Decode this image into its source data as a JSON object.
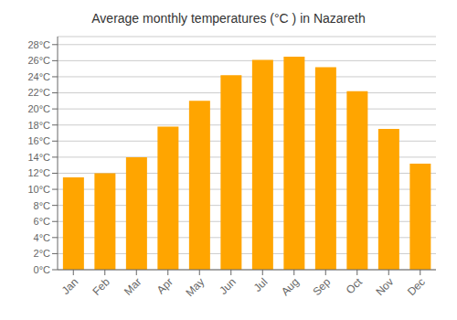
{
  "chart_data": {
    "type": "bar",
    "title": "Average monthly temperatures (°C ) in Nazareth",
    "categories": [
      "Jan",
      "Feb",
      "Mar",
      "Apr",
      "May",
      "Jun",
      "Jul",
      "Aug",
      "Sep",
      "Oct",
      "Nov",
      "Dec"
    ],
    "values": [
      11.5,
      12.0,
      14.0,
      17.8,
      21.0,
      24.2,
      26.1,
      26.5,
      25.2,
      22.2,
      17.5,
      13.2
    ],
    "color": "#FFA500",
    "ylim": [
      0,
      29
    ],
    "yticks": [
      {
        "value": 0,
        "label": "0°C"
      },
      {
        "value": 2,
        "label": "2°C"
      },
      {
        "value": 4,
        "label": "4°C"
      },
      {
        "value": 6,
        "label": "6°C"
      },
      {
        "value": 8,
        "label": "8°C"
      },
      {
        "value": 10,
        "label": "10°C"
      },
      {
        "value": 12,
        "label": "12°C"
      },
      {
        "value": 14,
        "label": "14°C"
      },
      {
        "value": 16,
        "label": "16°C"
      },
      {
        "value": 18,
        "label": "18°C"
      },
      {
        "value": 20,
        "label": "20°C"
      },
      {
        "value": 22,
        "label": "22°C"
      },
      {
        "value": 24,
        "label": "24°C"
      },
      {
        "value": 26,
        "label": "26°C"
      },
      {
        "value": 28,
        "label": "28°C"
      }
    ],
    "grid": true
  }
}
